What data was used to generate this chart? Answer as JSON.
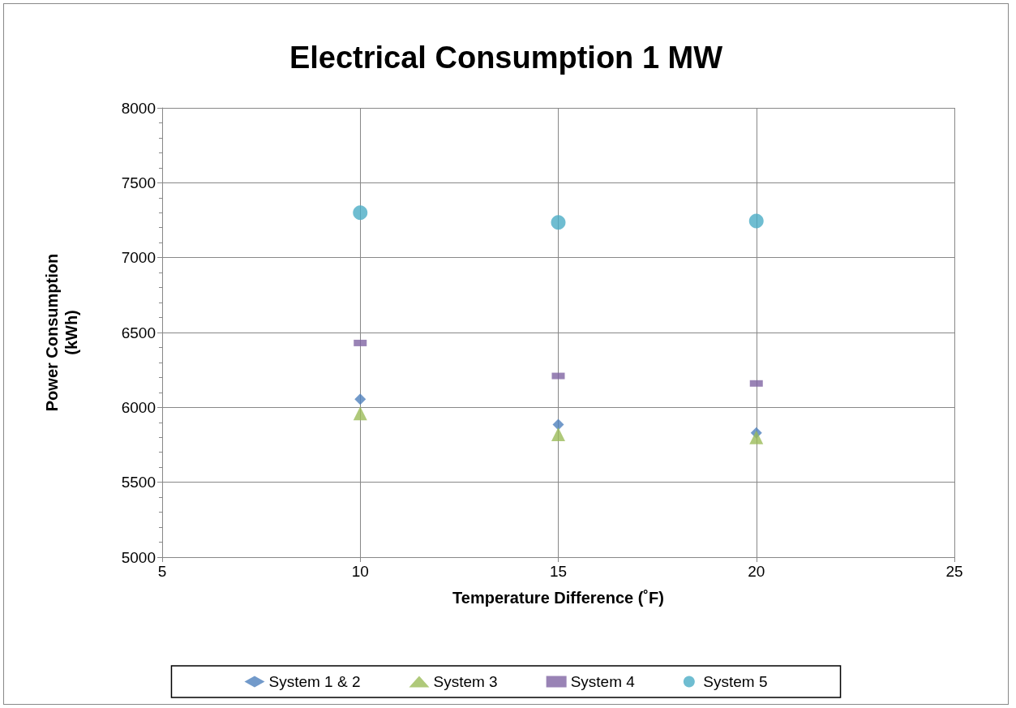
{
  "chart_data": {
    "type": "scatter",
    "title": "Electrical Consumption 1 MW",
    "xlabel": "Temperature Difference (˚F)",
    "ylabel": "Power Consumption\n(kWh)",
    "x": [
      10,
      15,
      20
    ],
    "series": [
      {
        "name": "System 1 & 2",
        "color": "#4f81bd",
        "marker": "diamond",
        "values": [
          6055,
          5885,
          5830
        ]
      },
      {
        "name": "System 3",
        "color": "#9bbb59",
        "marker": "triangle",
        "values": [
          5960,
          5820,
          5800
        ]
      },
      {
        "name": "System 4",
        "color": "#8064a2",
        "marker": "square",
        "values": [
          6430,
          6210,
          6160
        ]
      },
      {
        "name": "System 5",
        "color": "#4bacc6",
        "marker": "circle",
        "values": [
          7300,
          7235,
          7245
        ]
      }
    ],
    "xlim": [
      5,
      25
    ],
    "xticks": [
      5,
      10,
      15,
      20,
      25
    ],
    "ylim": [
      5000,
      8000
    ],
    "yticks": [
      5000,
      5500,
      6000,
      6500,
      7000,
      7500,
      8000
    ],
    "grid": true,
    "legend": "bottom"
  }
}
